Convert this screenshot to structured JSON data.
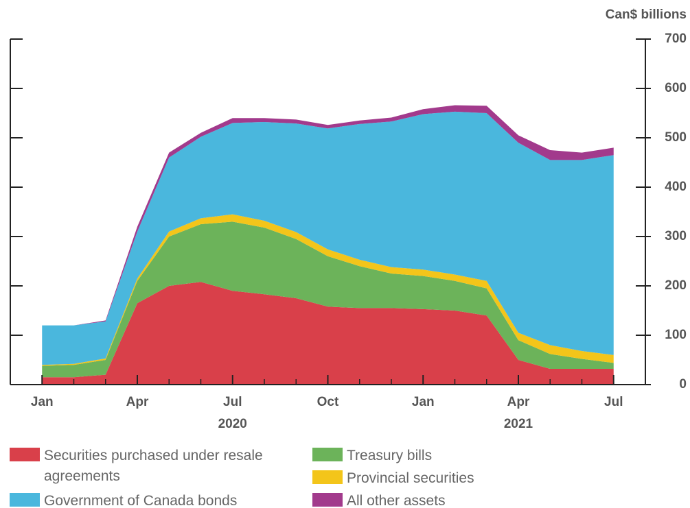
{
  "chart_data": {
    "type": "stacked_area",
    "y_label": "Can$ billions",
    "x": [
      "2020-01",
      "2020-02",
      "2020-03",
      "2020-04",
      "2020-05",
      "2020-06",
      "2020-07",
      "2020-08",
      "2020-09",
      "2020-10",
      "2020-11",
      "2020-12",
      "2021-01",
      "2021-02",
      "2021-03",
      "2021-04",
      "2021-05",
      "2021-06",
      "2021-07"
    ],
    "xlim": [
      "2019-12",
      "2021-08"
    ],
    "xticks": [
      {
        "value": "2020-01",
        "label": "Jan"
      },
      {
        "value": "2020-04",
        "label": "Apr"
      },
      {
        "value": "2020-07",
        "label": "Jul"
      },
      {
        "value": "2020-10",
        "label": "Oct"
      },
      {
        "value": "2021-01",
        "label": "Jan"
      },
      {
        "value": "2021-04",
        "label": "Apr"
      },
      {
        "value": "2021-07",
        "label": "Jul"
      }
    ],
    "year_labels": [
      {
        "value": "2020-07",
        "label": "2020"
      },
      {
        "value": "2021-04",
        "label": "2021"
      }
    ],
    "ylim": [
      0,
      700
    ],
    "yticks": [
      0,
      100,
      200,
      300,
      400,
      500,
      600,
      700
    ],
    "series": [
      {
        "name": "Securities purchased under resale agreements",
        "color": "#d9404a",
        "values": [
          15,
          15,
          20,
          165,
          200,
          208,
          190,
          183,
          175,
          158,
          155,
          155,
          153,
          150,
          140,
          50,
          32,
          32,
          32
        ]
      },
      {
        "name": "Treasury bills",
        "color": "#6cb35a",
        "values": [
          23,
          25,
          30,
          45,
          100,
          117,
          140,
          135,
          120,
          102,
          85,
          70,
          67,
          60,
          55,
          40,
          30,
          20,
          12
        ]
      },
      {
        "name": "Provincial securities",
        "color": "#f3c51a",
        "values": [
          2,
          2,
          3,
          5,
          10,
          12,
          15,
          14,
          14,
          14,
          13,
          13,
          13,
          13,
          15,
          15,
          18,
          16,
          16
        ]
      },
      {
        "name": "Government of Canada bonds",
        "color": "#4ab7dd",
        "values": [
          80,
          78,
          75,
          95,
          150,
          165,
          185,
          200,
          220,
          245,
          275,
          295,
          315,
          330,
          340,
          385,
          375,
          387,
          405
        ]
      },
      {
        "name": "All other assets",
        "color": "#a23a8c",
        "values": [
          0,
          0,
          2,
          10,
          10,
          8,
          10,
          8,
          8,
          7,
          7,
          8,
          10,
          13,
          15,
          15,
          20,
          15,
          15
        ]
      }
    ],
    "legend_order": [
      0,
      1,
      3,
      2,
      4
    ]
  }
}
